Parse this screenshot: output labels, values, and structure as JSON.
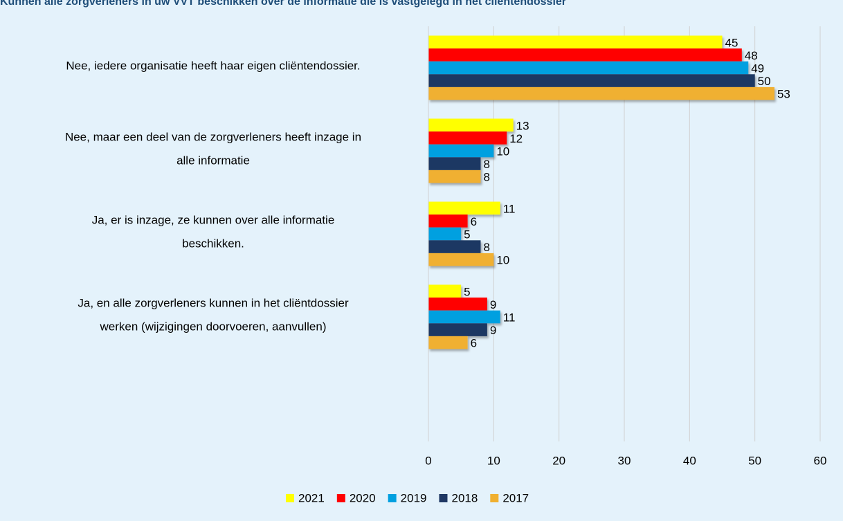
{
  "chart_data": {
    "type": "bar",
    "orientation": "horizontal",
    "title": "Kunnen alle zorgverleners in uw VVT beschikken over de informatie die is vastgelegd in het cliëntendossier",
    "categories": [
      [
        "Nee, iedere organisatie heeft haar eigen cliëntendossier."
      ],
      [
        "Nee, maar een deel van de zorgverleners heeft inzage in",
        "alle informatie"
      ],
      [
        "Ja, er is inzage, ze kunnen over alle informatie",
        "beschikken."
      ],
      [
        "Ja, en alle zorgverleners kunnen in het cliëntdossier",
        "werken (wijzigingen doorvoeren, aanvullen)"
      ],
      null
    ],
    "series": [
      {
        "name": "2021",
        "color": "#ffff00",
        "values": [
          45,
          13,
          11,
          5,
          null
        ]
      },
      {
        "name": "2020",
        "color": "#ff0000",
        "values": [
          48,
          12,
          6,
          9,
          null
        ]
      },
      {
        "name": "2019",
        "color": "#00a0e0",
        "values": [
          49,
          10,
          5,
          11,
          null
        ]
      },
      {
        "name": "2018",
        "color": "#1f3864",
        "values": [
          50,
          8,
          8,
          9,
          null
        ]
      },
      {
        "name": "2017",
        "color": "#f0b030",
        "values": [
          53,
          8,
          10,
          6,
          null
        ]
      }
    ],
    "xlim": [
      0,
      60
    ],
    "xticks": [
      0,
      10,
      20,
      30,
      40,
      50,
      60
    ],
    "grid": true,
    "legend": "bottom"
  }
}
